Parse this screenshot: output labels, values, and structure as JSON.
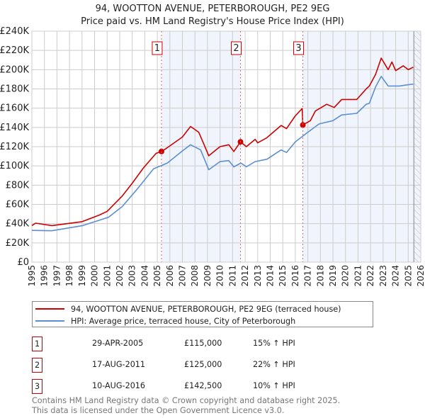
{
  "chart_data": {
    "type": "line",
    "title": "94, WOOTTON AVENUE, PETERBOROUGH, PE2 9EG",
    "subtitle": "Price paid vs. HM Land Registry's House Price Index (HPI)",
    "xlim": [
      1995,
      2026
    ],
    "ylim": [
      0,
      240000
    ],
    "grid": true,
    "y_ticks": [
      "£0",
      "£20K",
      "£40K",
      "£60K",
      "£80K",
      "£100K",
      "£120K",
      "£140K",
      "£160K",
      "£180K",
      "£200K",
      "£220K",
      "£240K"
    ],
    "x_ticks": [
      "1995",
      "1996",
      "1997",
      "1998",
      "1999",
      "2000",
      "2001",
      "2002",
      "2003",
      "2004",
      "2005",
      "2006",
      "2007",
      "2008",
      "2009",
      "2010",
      "2011",
      "2012",
      "2013",
      "2014",
      "2015",
      "2016",
      "2017",
      "2018",
      "2019",
      "2020",
      "2021",
      "2022",
      "2023",
      "2024",
      "2025",
      "2026"
    ],
    "series": [
      {
        "name": "94, WOOTTON AVENUE, PETERBOROUGH, PE2 9EG (terraced house)",
        "color": "#cc0000",
        "x": [
          1995.0,
          1995.3,
          1996.6,
          1999.0,
          2000.4,
          2001.0,
          2002.2,
          2003.0,
          2003.9,
          2004.9,
          2005.33,
          2005.8,
          2007.0,
          2007.65,
          2008.3,
          2008.7,
          2009.1,
          2010.0,
          2010.7,
          2011.1,
          2011.63,
          2012.1,
          2012.8,
          2013.0,
          2013.7,
          2014.87,
          2015.3,
          2016.0,
          2016.55,
          2016.6,
          2017.2,
          2017.6,
          2018.5,
          2019.1,
          2019.7,
          2020.9,
          2021.65,
          2021.9,
          2022.4,
          2022.85,
          2023.4,
          2023.7,
          2024.0,
          2024.6,
          2025.0,
          2025.4
        ],
        "y": [
          38000,
          40500,
          38000,
          42000,
          49000,
          52800,
          68700,
          82000,
          98000,
          113000,
          115000,
          119000,
          130000,
          141000,
          135000,
          123000,
          110500,
          120000,
          122000,
          115000,
          125000,
          120000,
          127600,
          124000,
          129000,
          142000,
          138700,
          152000,
          159600,
          142500,
          147000,
          157000,
          164000,
          160700,
          169000,
          169000,
          180000,
          183000,
          195000,
          212000,
          200000,
          208000,
          199000,
          204000,
          200000,
          202500
        ]
      },
      {
        "name": "HPI: Average price, terraced house, City of Peterborough",
        "color": "#5b8fd0",
        "x": [
          1995.0,
          1996.6,
          1999.05,
          2001.1,
          2002.2,
          2003.4,
          2004.7,
          2005.8,
          2007.0,
          2007.65,
          2008.45,
          2009.1,
          2010.0,
          2010.7,
          2011.1,
          2011.67,
          2012.1,
          2012.8,
          2013.74,
          2014.87,
          2015.3,
          2016.0,
          2016.9,
          2017.9,
          2019.0,
          2019.7,
          2020.9,
          2021.65,
          2021.9,
          2022.4,
          2022.85,
          2023.4,
          2024.3,
          2024.8,
          2025.4
        ],
        "y": [
          33000,
          32600,
          38000,
          46600,
          57700,
          76000,
          97000,
          103000,
          115600,
          122000,
          116600,
          96000,
          104500,
          105500,
          99000,
          103000,
          99000,
          104500,
          107000,
          116600,
          114000,
          125000,
          134000,
          143600,
          147000,
          153000,
          154600,
          164000,
          165000,
          182000,
          193000,
          183000,
          183000,
          184000,
          185000
        ]
      }
    ],
    "sales": [
      {
        "label": "1",
        "x": 2005.33,
        "y": 115000
      },
      {
        "label": "2",
        "x": 2011.63,
        "y": 125000
      },
      {
        "label": "3",
        "x": 2016.6,
        "y": 142500
      }
    ],
    "shaded_ranges": [
      [
        2005.33,
        2011.63
      ],
      [
        2016.6,
        2026
      ]
    ],
    "hatched_from": 2025.45,
    "legend_placement": "below"
  },
  "legend": {
    "items": [
      {
        "label": "94, WOOTTON AVENUE, PETERBOROUGH, PE2 9EG (terraced house)",
        "color": "#cc0000"
      },
      {
        "label": "HPI: Average price, terraced house, City of Peterborough",
        "color": "#5b8fd0"
      }
    ]
  },
  "transactions": [
    {
      "num": "1",
      "date": "29-APR-2005",
      "price": "£115,000",
      "delta": "15% ↑ HPI"
    },
    {
      "num": "2",
      "date": "17-AUG-2011",
      "price": "£125,000",
      "delta": "22% ↑ HPI"
    },
    {
      "num": "3",
      "date": "10-AUG-2016",
      "price": "£142,500",
      "delta": "10% ↑ HPI"
    }
  ],
  "footer": {
    "line1": "Contains HM Land Registry data © Crown copyright and database right 2025.",
    "line2": "This data is licensed under the Open Government Licence v3.0."
  }
}
